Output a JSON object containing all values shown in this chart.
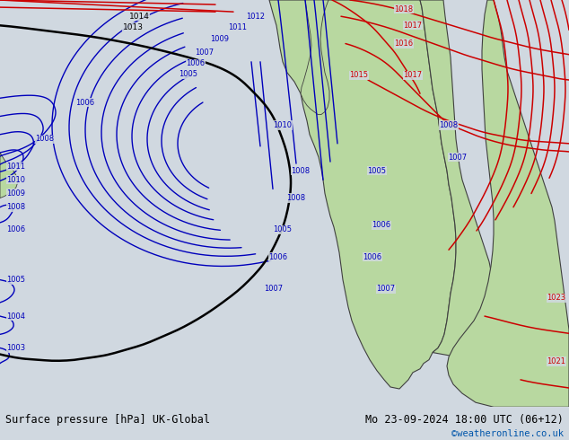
{
  "title_left": "Surface pressure [hPa] UK-Global",
  "title_right": "Mo 23-09-2024 18:00 UTC (06+12)",
  "watermark": "©weatheronline.co.uk",
  "watermark_color": "#0055aa",
  "bg_color": "#d0d8e0",
  "sea_color": "#d0d8e0",
  "land_color": "#b8d8a0",
  "land_edge_color": "#404040",
  "fig_width": 6.34,
  "fig_height": 4.9,
  "bottom_bar_color": "#ffffff",
  "bottom_text_color": "#000000",
  "bottom_bar_height": 0.075,
  "font_size_bottom": 8.5,
  "red_color": "#cc0000",
  "blue_color": "#0000bb",
  "black_color": "#000000"
}
